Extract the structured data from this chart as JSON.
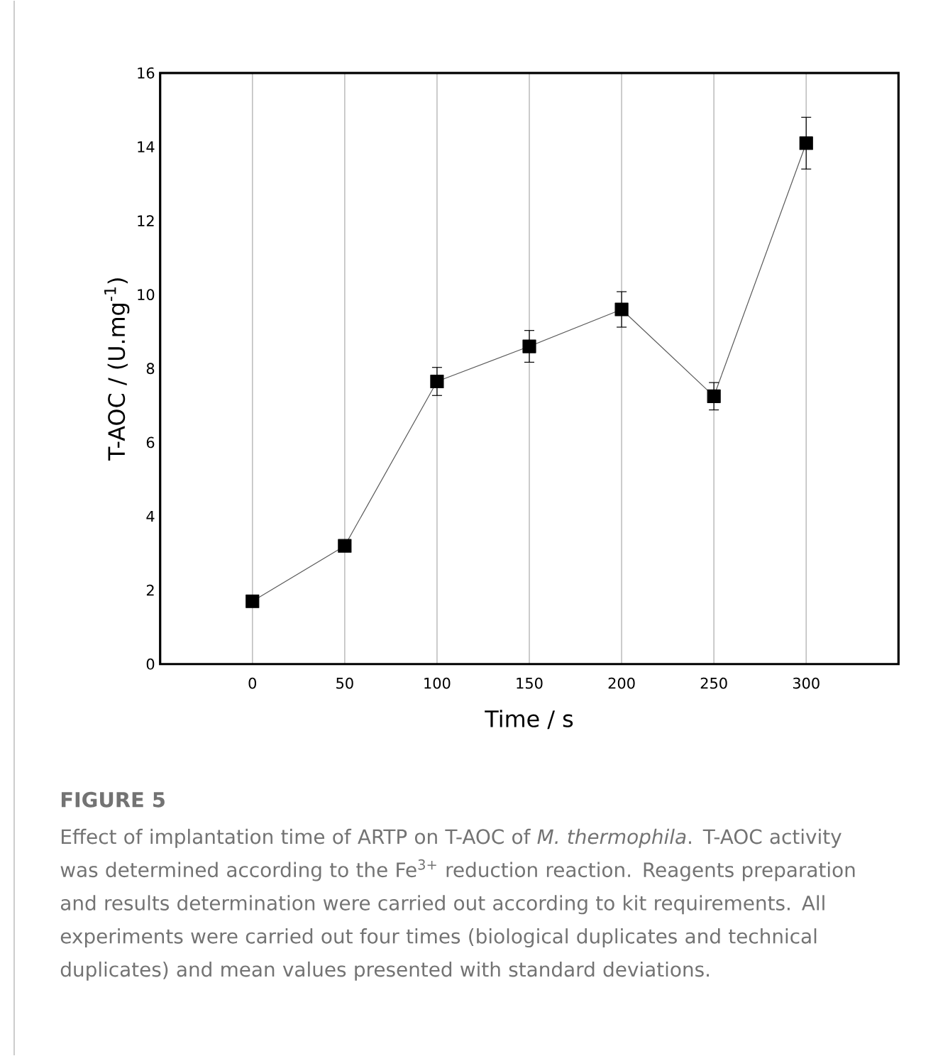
{
  "chart_data": {
    "type": "line",
    "title": "FIGURE 5",
    "xlabel": "Time / s",
    "ylabel": "T-AOC / (U.mg$^{-1}$)",
    "x": [
      0,
      50,
      100,
      150,
      200,
      250,
      300
    ],
    "series": [
      {
        "color": "#000000",
        "values": [
          1.7,
          3.2,
          7.65,
          8.6,
          9.6,
          7.25,
          14.1
        ],
        "errors": [
          null,
          null,
          0.38,
          0.43,
          0.48,
          0.37,
          0.7
        ]
      }
    ],
    "xlim": [
      -50,
      350
    ],
    "xticks": [
      0,
      50,
      100,
      150,
      200,
      250,
      300
    ],
    "ylim": [
      0,
      16
    ],
    "yticks": [
      0,
      2,
      4,
      6,
      8,
      10,
      12,
      14,
      16
    ],
    "grid": "x",
    "marker": "square",
    "line_style": "solid",
    "annotations": [
      "Effect of implantation time of ARTP on T-AOC of *M. thermophila*. T-AOC activity was determined according to the Fe$^{3+}$ reduction reaction. Reagents preparation and results determination were carried out according to kit requirements. All experiments were carried out four times (biological duplicates and technical duplicates) and mean values presented with standard deviations."
    ]
  }
}
